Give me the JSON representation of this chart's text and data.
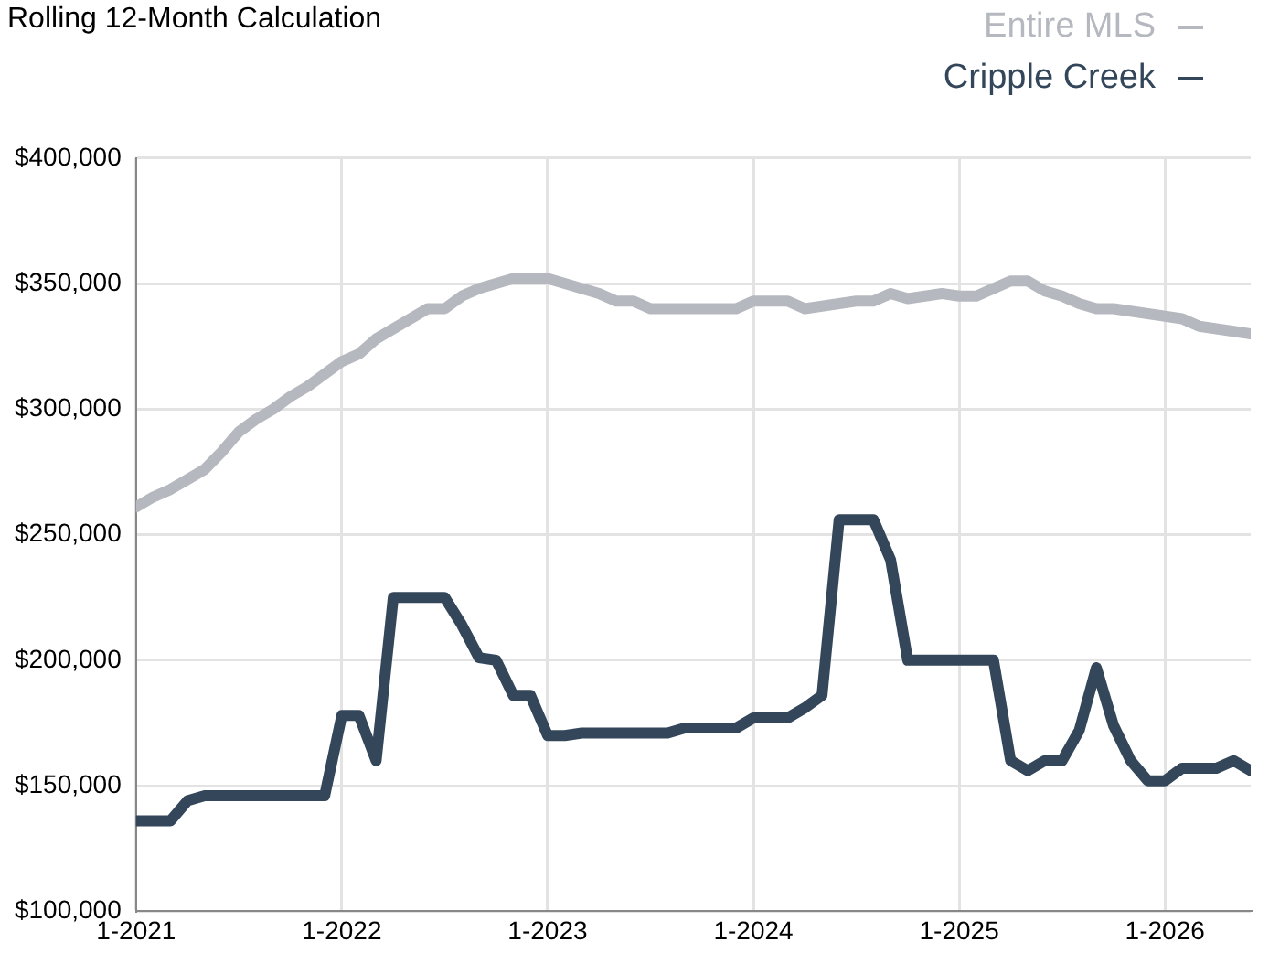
{
  "chart_data": {
    "type": "line",
    "title": "Rolling 12-Month Calculation",
    "x": [
      "2021-01",
      "2021-02",
      "2021-03",
      "2021-04",
      "2021-05",
      "2021-06",
      "2021-07",
      "2021-08",
      "2021-09",
      "2021-10",
      "2021-11",
      "2021-12",
      "2022-01",
      "2022-02",
      "2022-03",
      "2022-04",
      "2022-05",
      "2022-06",
      "2022-07",
      "2022-08",
      "2022-09",
      "2022-10",
      "2022-11",
      "2022-12",
      "2023-01",
      "2023-02",
      "2023-03",
      "2023-04",
      "2023-05",
      "2023-06",
      "2023-07",
      "2023-08",
      "2023-09",
      "2023-10",
      "2023-11",
      "2023-12",
      "2024-01",
      "2024-02",
      "2024-03",
      "2024-04",
      "2024-05",
      "2024-06",
      "2024-07",
      "2024-08",
      "2024-09",
      "2024-10",
      "2024-11",
      "2024-12",
      "2025-01",
      "2025-02",
      "2025-03",
      "2025-04",
      "2025-05",
      "2025-06",
      "2025-07",
      "2025-08",
      "2025-09",
      "2025-10",
      "2025-11",
      "2025-12",
      "2026-01",
      "2026-02",
      "2026-03",
      "2026-04",
      "2026-05",
      "2026-06"
    ],
    "series": [
      {
        "name": "Entire MLS",
        "color": "#b5b9bf",
        "values": [
          261000,
          265000,
          268000,
          272000,
          276000,
          283000,
          291000,
          296000,
          300000,
          305000,
          309000,
          314000,
          319000,
          322000,
          328000,
          332000,
          336000,
          340000,
          340000,
          345000,
          348000,
          350000,
          352000,
          352000,
          352000,
          350000,
          348000,
          346000,
          343000,
          343000,
          340000,
          340000,
          340000,
          340000,
          340000,
          340000,
          343000,
          343000,
          343000,
          340000,
          341000,
          342000,
          343000,
          343000,
          346000,
          344000,
          345000,
          346000,
          345000,
          345000,
          348000,
          351000,
          351000,
          347000,
          345000,
          342000,
          340000,
          340000,
          339000,
          338000,
          337000,
          336000,
          333000,
          332000,
          331000,
          330000
        ]
      },
      {
        "name": "Cripple Creek",
        "color": "#34475a",
        "values": [
          136000,
          136000,
          136000,
          144000,
          146000,
          146000,
          146000,
          146000,
          146000,
          146000,
          146000,
          146000,
          178000,
          178000,
          160000,
          225000,
          225000,
          225000,
          225000,
          214000,
          201000,
          200000,
          186000,
          186000,
          170000,
          170000,
          171000,
          171000,
          171000,
          171000,
          171000,
          171000,
          173000,
          173000,
          173000,
          173000,
          177000,
          177000,
          177000,
          181000,
          186000,
          256000,
          256000,
          256000,
          240000,
          200000,
          200000,
          200000,
          200000,
          200000,
          200000,
          160000,
          156000,
          160000,
          160000,
          172000,
          197000,
          174000,
          160000,
          152000,
          152000,
          157000,
          157000,
          157000,
          160000,
          156000
        ]
      }
    ],
    "xlim": [
      "2021-01",
      "2026-06"
    ],
    "xticks": [
      {
        "value": "2021-01",
        "label": "1-2021"
      },
      {
        "value": "2022-01",
        "label": "1-2022"
      },
      {
        "value": "2023-01",
        "label": "1-2023"
      },
      {
        "value": "2024-01",
        "label": "1-2024"
      },
      {
        "value": "2025-01",
        "label": "1-2025"
      },
      {
        "value": "2026-01",
        "label": "1-2026"
      }
    ],
    "ylim": [
      100000,
      400000
    ],
    "yticks": [
      {
        "value": 100000,
        "label": "$100,000"
      },
      {
        "value": 150000,
        "label": "$150,000"
      },
      {
        "value": 200000,
        "label": "$200,000"
      },
      {
        "value": 250000,
        "label": "$250,000"
      },
      {
        "value": 300000,
        "label": "$300,000"
      },
      {
        "value": 350000,
        "label": "$350,000"
      },
      {
        "value": 400000,
        "label": "$400,000"
      }
    ],
    "grid": true,
    "legend": "top right",
    "marker": "none",
    "line_style": "solid"
  }
}
